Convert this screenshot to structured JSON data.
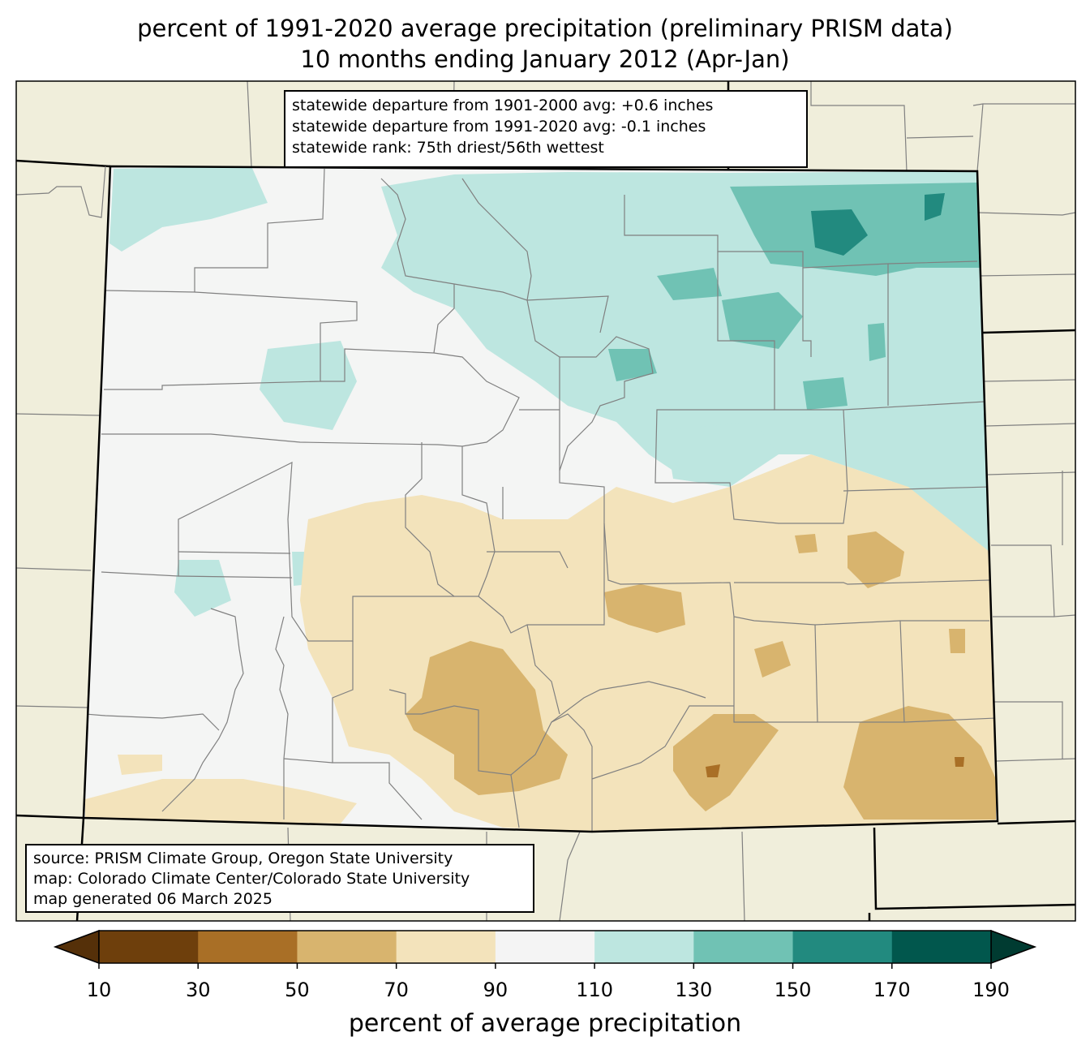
{
  "title": {
    "line1": "percent of 1991-2020 average precipitation (preliminary PRISM data)",
    "line2": "10 months ending January 2012 (Apr-Jan)"
  },
  "stats": {
    "line1": "statewide departure from 1901-2000 avg: +0.6 inches",
    "line2": "statewide departure from 1991-2020 avg: -0.1 inches",
    "line3": "statewide rank: 75th driest/56th wettest"
  },
  "source": {
    "line1": "source: PRISM Climate Group, Oregon State University",
    "line2": "map: Colorado Climate Center/Colorado State University",
    "line3": "map generated 06 March 2025"
  },
  "colorbar": {
    "label": "percent of average precipitation",
    "ticks": [
      "10",
      "30",
      "50",
      "70",
      "90",
      "110",
      "130",
      "150",
      "170",
      "190"
    ],
    "colors": [
      "#6e3f0c",
      "#a96f26",
      "#d8b46e",
      "#f3e3bb",
      "#f4f4f4",
      "#bde6e0",
      "#70c2b4",
      "#228a7f",
      "#01574d"
    ],
    "under_color": "#553009",
    "over_color": "#003b31"
  },
  "map_colors": {
    "outside": "#f0eedb",
    "state_fill": "#f4f5f4"
  }
}
